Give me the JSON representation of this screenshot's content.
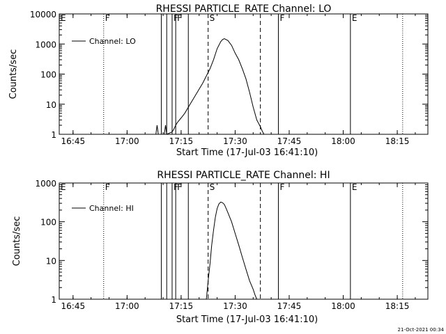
{
  "chart_data": [
    {
      "type": "line",
      "title": "RHESSI PARTICLE_RATE Channel: LO",
      "xlabel": "Start Time (17-Jul-03 16:41:10)",
      "ylabel": "Counts/sec",
      "yscale": "log",
      "ylim": [
        1,
        10000
      ],
      "xlim": [
        "16:41:10",
        "18:23:30"
      ],
      "xticks": [
        "16:45",
        "17:00",
        "17:15",
        "17:30",
        "17:45",
        "18:00",
        "18:15"
      ],
      "yticks": [
        "1",
        "10",
        "100",
        "1000",
        "10000"
      ],
      "grid": false,
      "legend": "top-left",
      "series": [
        {
          "name": "Channel: LO",
          "x": [
            "17:08:00",
            "17:08:20",
            "17:08:40",
            "17:10:20",
            "17:10:40",
            "17:11:00",
            "17:12:30",
            "17:13:00",
            "17:13:30",
            "17:14:00",
            "17:15:00",
            "17:16:00",
            "17:17:30",
            "17:19:00",
            "17:21:00",
            "17:23:00",
            "17:24:00",
            "17:25:00",
            "17:26:00",
            "17:26:30",
            "17:27:00",
            "17:28:00",
            "17:29:00",
            "17:30:00",
            "17:31:00",
            "17:32:00",
            "17:33:00",
            "17:34:00",
            "17:35:00",
            "17:36:00",
            "17:37:00",
            "17:37:30",
            "17:38:00"
          ],
          "values": [
            1,
            2,
            1,
            1,
            2,
            1,
            1.2,
            1.5,
            2,
            2.5,
            3.5,
            5,
            10,
            20,
            50,
            150,
            300,
            700,
            1200,
            1400,
            1500,
            1300,
            900,
            500,
            300,
            150,
            70,
            25,
            8,
            3,
            1.8,
            1.3,
            1
          ]
        }
      ],
      "annotations": [
        {
          "label": "E",
          "x": "16:41:10",
          "line": "none"
        },
        {
          "label": "F",
          "x": "16:53:30",
          "line": "dotted"
        },
        {
          "label": "",
          "x": "17:09:30",
          "line": "solid"
        },
        {
          "label": "",
          "x": "17:11:00",
          "line": "solid"
        },
        {
          "label": "F",
          "x": "17:12:30",
          "line": "solid"
        },
        {
          "label": "F",
          "x": "17:13:30",
          "line": "solid"
        },
        {
          "label": "",
          "x": "17:17:00",
          "line": "solid"
        },
        {
          "label": "S",
          "x": "17:22:30",
          "line": "dashed"
        },
        {
          "label": "",
          "x": "17:37:00",
          "line": "dashed"
        },
        {
          "label": "F",
          "x": "17:42:00",
          "line": "solid"
        },
        {
          "label": "E",
          "x": "18:02:00",
          "line": "solid"
        },
        {
          "label": "",
          "x": "18:16:30",
          "line": "dotted"
        }
      ]
    },
    {
      "type": "line",
      "title": "RHESSI PARTICLE_RATE Channel: HI",
      "xlabel": "Start Time (17-Jul-03 16:41:10)",
      "ylabel": "Counts/sec",
      "yscale": "log",
      "ylim": [
        1,
        1000
      ],
      "xlim": [
        "16:41:10",
        "18:23:30"
      ],
      "xticks": [
        "16:45",
        "17:00",
        "17:15",
        "17:30",
        "17:45",
        "18:00",
        "18:15"
      ],
      "yticks": [
        "1",
        "10",
        "100",
        "1000"
      ],
      "grid": false,
      "legend": "top-left",
      "series": [
        {
          "name": "Channel: HI",
          "x": [
            "17:22:00",
            "17:22:30",
            "17:23:00",
            "17:23:30",
            "17:24:00",
            "17:24:30",
            "17:25:00",
            "17:25:30",
            "17:26:00",
            "17:26:30",
            "17:27:00",
            "17:27:30",
            "17:28:00",
            "17:29:00",
            "17:30:00",
            "17:31:00",
            "17:32:00",
            "17:33:00",
            "17:34:00",
            "17:35:00",
            "17:35:30",
            "17:36:00"
          ],
          "values": [
            1,
            3,
            8,
            25,
            60,
            130,
            220,
            290,
            320,
            310,
            280,
            220,
            170,
            100,
            50,
            25,
            12,
            6,
            3,
            1.8,
            1.3,
            1
          ]
        }
      ],
      "annotations": [
        {
          "label": "E",
          "x": "16:41:10",
          "line": "none"
        },
        {
          "label": "F",
          "x": "16:53:30",
          "line": "dotted"
        },
        {
          "label": "",
          "x": "17:09:30",
          "line": "solid"
        },
        {
          "label": "",
          "x": "17:11:00",
          "line": "solid"
        },
        {
          "label": "F",
          "x": "17:12:30",
          "line": "solid"
        },
        {
          "label": "F",
          "x": "17:13:30",
          "line": "solid"
        },
        {
          "label": "",
          "x": "17:17:00",
          "line": "solid"
        },
        {
          "label": "S",
          "x": "17:22:30",
          "line": "dashed"
        },
        {
          "label": "",
          "x": "17:37:00",
          "line": "dashed"
        },
        {
          "label": "F",
          "x": "17:42:00",
          "line": "solid"
        },
        {
          "label": "E",
          "x": "18:02:00",
          "line": "solid"
        },
        {
          "label": "",
          "x": "18:16:30",
          "line": "dotted"
        }
      ]
    }
  ],
  "footer": {
    "timestamp": "21-Oct-2021 00:34"
  }
}
